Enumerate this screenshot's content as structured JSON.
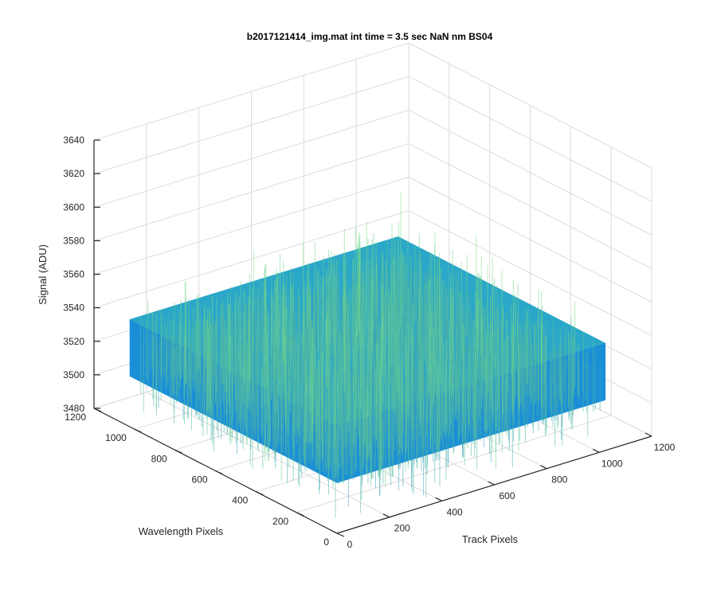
{
  "chart_data": {
    "type": "surface3d",
    "title": "b2017121414_img.mat int time = 3.5 sec  NaN nm BS04",
    "xlabel": "Track Pixels",
    "ylabel": "Wavelength Pixels",
    "zlabel": "Signal (ADU)",
    "xlim": [
      0,
      1200
    ],
    "ylim": [
      0,
      1200
    ],
    "zlim": [
      3480,
      3640
    ],
    "xticks": [
      0,
      200,
      400,
      600,
      800,
      1000,
      1200
    ],
    "yticks": [
      0,
      200,
      400,
      600,
      800,
      1000,
      1200
    ],
    "zticks": [
      3480,
      3500,
      3520,
      3540,
      3560,
      3580,
      3600,
      3620,
      3640
    ],
    "grid": true,
    "surface": {
      "x_range": [
        0,
        1024
      ],
      "y_range": [
        0,
        1024
      ],
      "mean": 3522,
      "noise_min": 3495,
      "noise_max": 3560,
      "colormap": "parula-like blue to green"
    }
  }
}
